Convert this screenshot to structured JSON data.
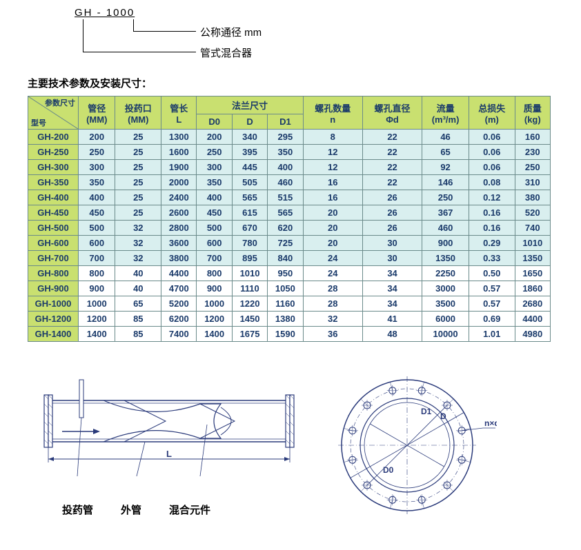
{
  "codeDiagram": {
    "code": "GH - 1000",
    "label1": "公称通径 mm",
    "label2": "管式混合器"
  },
  "sectionTitle": "主要技术参数及安装尺寸：",
  "table": {
    "headerDiag": {
      "top": "参数尺寸",
      "bottom": "型号"
    },
    "headers": {
      "pipeDia": "管径\n(MM)",
      "dosePort": "投药口\n(MM)",
      "pipeLen": "管长\nL",
      "flange": "法兰尺寸",
      "D0": "D0",
      "D": "D",
      "D1": "D1",
      "holeCount": "螺孔数量\nn",
      "holeDia": "螺孔直径\nΦd",
      "flow": "流量\n(m³/m)",
      "loss": "总损失\n(m)",
      "mass": "质量\n(kg)"
    },
    "colors": {
      "headerBg": "#c9e070",
      "shadeBg": "#d9efef",
      "plainBg": "#ffffff",
      "border": "#6a8a8a",
      "text": "#1a3a6a"
    },
    "rows": [
      {
        "shade": true,
        "model": "GH-200",
        "pipe": "200",
        "dose": "25",
        "len": "1300",
        "D0": "200",
        "D": "340",
        "D1": "295",
        "n": "8",
        "phi": "22",
        "flow": "46",
        "loss": "0.06",
        "mass": "160"
      },
      {
        "shade": true,
        "model": "GH-250",
        "pipe": "250",
        "dose": "25",
        "len": "1600",
        "D0": "250",
        "D": "395",
        "D1": "350",
        "n": "12",
        "phi": "22",
        "flow": "65",
        "loss": "0.06",
        "mass": "230"
      },
      {
        "shade": true,
        "model": "GH-300",
        "pipe": "300",
        "dose": "25",
        "len": "1900",
        "D0": "300",
        "D": "445",
        "D1": "400",
        "n": "12",
        "phi": "22",
        "flow": "92",
        "loss": "0.06",
        "mass": "250"
      },
      {
        "shade": true,
        "model": "GH-350",
        "pipe": "350",
        "dose": "25",
        "len": "2000",
        "D0": "350",
        "D": "505",
        "D1": "460",
        "n": "16",
        "phi": "22",
        "flow": "146",
        "loss": "0.08",
        "mass": "310"
      },
      {
        "shade": true,
        "model": "GH-400",
        "pipe": "400",
        "dose": "25",
        "len": "2400",
        "D0": "400",
        "D": "565",
        "D1": "515",
        "n": "16",
        "phi": "26",
        "flow": "250",
        "loss": "0.12",
        "mass": "380"
      },
      {
        "shade": true,
        "model": "GH-450",
        "pipe": "450",
        "dose": "25",
        "len": "2600",
        "D0": "450",
        "D": "615",
        "D1": "565",
        "n": "20",
        "phi": "26",
        "flow": "367",
        "loss": "0.16",
        "mass": "520"
      },
      {
        "shade": true,
        "model": "GH-500",
        "pipe": "500",
        "dose": "32",
        "len": "2800",
        "D0": "500",
        "D": "670",
        "D1": "620",
        "n": "20",
        "phi": "26",
        "flow": "460",
        "loss": "0.16",
        "mass": "740"
      },
      {
        "shade": true,
        "model": "GH-600",
        "pipe": "600",
        "dose": "32",
        "len": "3600",
        "D0": "600",
        "D": "780",
        "D1": "725",
        "n": "20",
        "phi": "30",
        "flow": "900",
        "loss": "0.29",
        "mass": "1010"
      },
      {
        "shade": true,
        "model": "GH-700",
        "pipe": "700",
        "dose": "32",
        "len": "3800",
        "D0": "700",
        "D": "895",
        "D1": "840",
        "n": "24",
        "phi": "30",
        "flow": "1350",
        "loss": "0.33",
        "mass": "1350"
      },
      {
        "shade": false,
        "model": "GH-800",
        "pipe": "800",
        "dose": "40",
        "len": "4400",
        "D0": "800",
        "D": "1010",
        "D1": "950",
        "n": "24",
        "phi": "34",
        "flow": "2250",
        "loss": "0.50",
        "mass": "1650"
      },
      {
        "shade": false,
        "model": "GH-900",
        "pipe": "900",
        "dose": "40",
        "len": "4700",
        "D0": "900",
        "D": "1110",
        "D1": "1050",
        "n": "28",
        "phi": "34",
        "flow": "3000",
        "loss": "0.57",
        "mass": "1860"
      },
      {
        "shade": false,
        "model": "GH-1000",
        "pipe": "1000",
        "dose": "65",
        "len": "5200",
        "D0": "1000",
        "D": "1220",
        "D1": "1160",
        "n": "28",
        "phi": "34",
        "flow": "3500",
        "loss": "0.57",
        "mass": "2680"
      },
      {
        "shade": false,
        "model": "GH-1200",
        "pipe": "1200",
        "dose": "85",
        "len": "6200",
        "D0": "1200",
        "D": "1450",
        "D1": "1380",
        "n": "32",
        "phi": "41",
        "flow": "6000",
        "loss": "0.69",
        "mass": "4400"
      },
      {
        "shade": false,
        "model": "GH-1400",
        "pipe": "1400",
        "dose": "85",
        "len": "7400",
        "D0": "1400",
        "D": "1675",
        "D1": "1590",
        "n": "36",
        "phi": "48",
        "flow": "10000",
        "loss": "1.01",
        "mass": "4980"
      }
    ]
  },
  "pipeDiagram": {
    "labels": {
      "dose": "投药管",
      "outer": "外管",
      "mixer": "混合元件",
      "L": "L"
    },
    "stroke": "#2a3a7a"
  },
  "flangeDiagram": {
    "label_nd": "n×d",
    "label_D": "D",
    "label_D1": "D1",
    "label_D0": "D0",
    "stroke": "#2a3a7a",
    "holes": 12
  }
}
